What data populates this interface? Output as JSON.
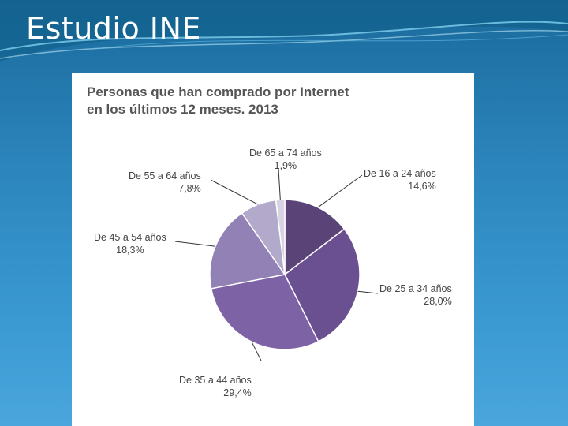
{
  "slide": {
    "title": "Estudio INE"
  },
  "theme": {
    "background": "#2c86bd",
    "slice_colors": [
      "#5a4377",
      "#6a5090",
      "#7d63a6",
      "#9281b5",
      "#b3a9cb",
      "#d8d2e2"
    ],
    "leader_color": "#333333"
  },
  "chart_data": {
    "type": "pie",
    "title_lines": [
      "Personas que han comprado por Internet",
      "en los últimos 12 meses. 2013"
    ],
    "slices": [
      {
        "name": "De 16 a 24 años",
        "value": 14.6,
        "label": "14,6%"
      },
      {
        "name": "De 25 a 34 años",
        "value": 28.0,
        "label": "28,0%"
      },
      {
        "name": "De 35 a 44 años",
        "value": 29.4,
        "label": "29,4%"
      },
      {
        "name": "De 45 a 54 años",
        "value": 18.3,
        "label": "18,3%"
      },
      {
        "name": "De 55 a 64 años",
        "value": 7.8,
        "label": "7,8%"
      },
      {
        "name": "De 65 a 74 años",
        "value": 1.9,
        "label": "1,9%"
      }
    ],
    "start_angle": "12 o'clock",
    "direction": "clockwise",
    "legend": "none",
    "labels": "outside with leader lines"
  }
}
